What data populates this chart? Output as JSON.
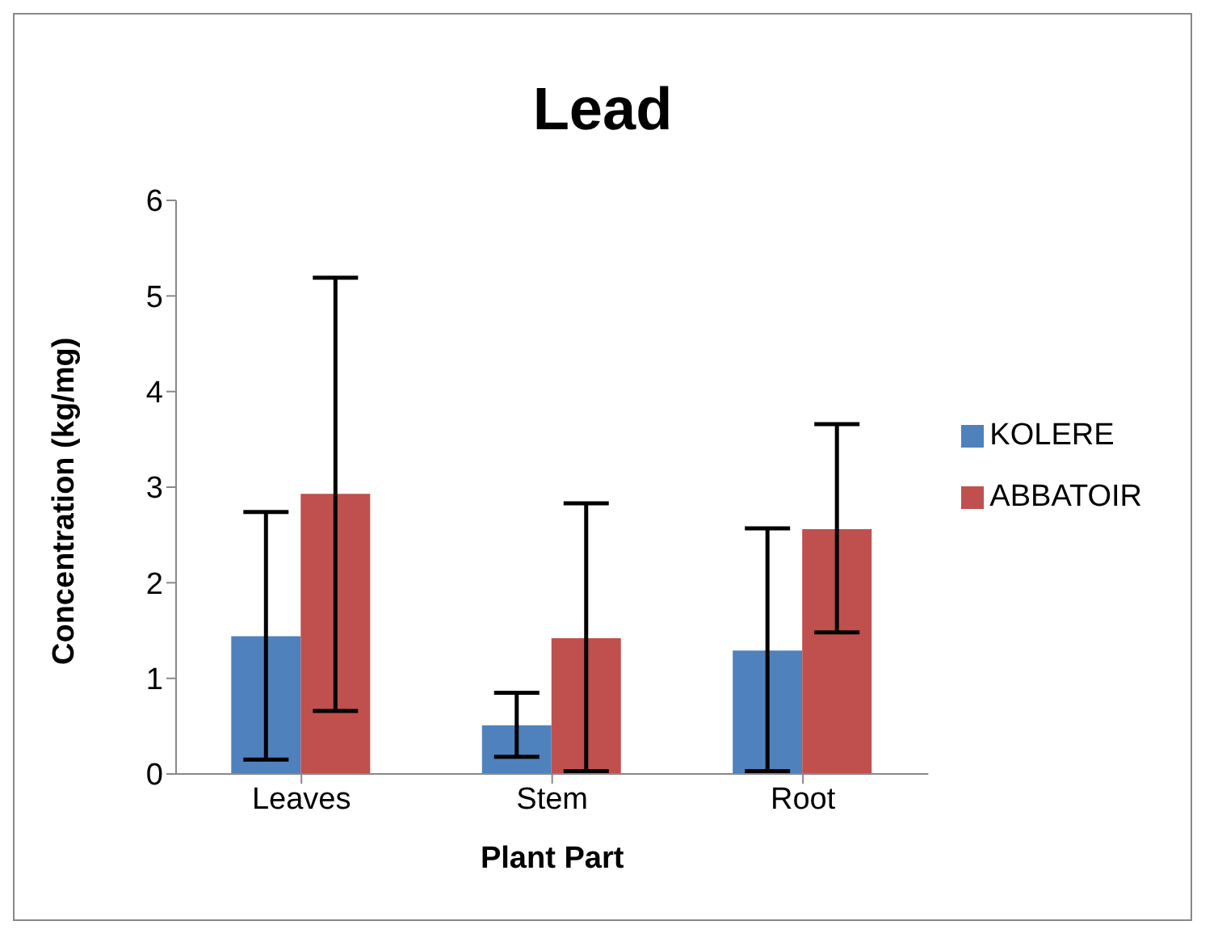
{
  "chart_data": {
    "type": "bar",
    "title": "Lead",
    "xlabel": "Plant Part",
    "ylabel": "Concentration (kg/mg)",
    "categories": [
      "Leaves",
      "Stem",
      "Root"
    ],
    "series": [
      {
        "name": "KOLERE",
        "color": "#4f81bd",
        "values": [
          1.44,
          0.51,
          1.29
        ],
        "errors": [
          [
            0.15,
            2.74
          ],
          [
            0.18,
            0.85
          ],
          [
            0.03,
            2.57
          ]
        ]
      },
      {
        "name": "ABBATOIR",
        "color": "#c0504d",
        "values": [
          2.93,
          1.42,
          2.56
        ],
        "errors": [
          [
            0.66,
            5.19
          ],
          [
            0.03,
            2.83
          ],
          [
            1.48,
            3.66
          ]
        ]
      }
    ],
    "ylim": [
      0,
      6
    ],
    "yticks": [
      0,
      1,
      2,
      3,
      4,
      5,
      6
    ],
    "grid": false,
    "legend": "right"
  }
}
